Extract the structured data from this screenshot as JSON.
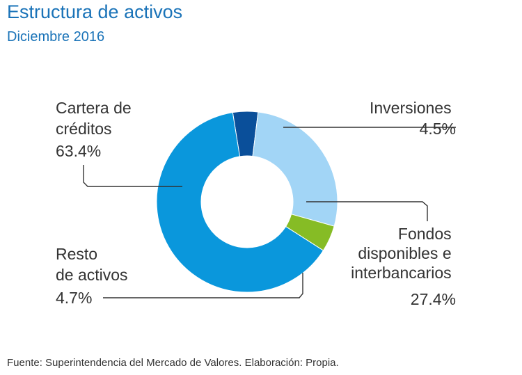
{
  "header": {
    "title": "Estructura de activos",
    "subtitle": "Diciembre 2016"
  },
  "chart_data": {
    "type": "pie",
    "title": "Estructura de activos",
    "subtitle": "Diciembre 2016",
    "donut": true,
    "unit": "%",
    "slices": [
      {
        "label_lines": [
          "Inversiones"
        ],
        "value": 4.5,
        "value_label": "4.5%",
        "color": "#0a4f9a"
      },
      {
        "label_lines": [
          "Fondos",
          "disponibles e",
          "interbancarios"
        ],
        "value": 27.4,
        "value_label": "27.4%",
        "color": "#a2d5f6"
      },
      {
        "label_lines": [
          "Resto",
          "de activos"
        ],
        "value": 4.7,
        "value_label": "4.7%",
        "color": "#86bc25"
      },
      {
        "label_lines": [
          "Cartera de",
          "créditos"
        ],
        "value": 63.4,
        "value_label": "63.4%",
        "color": "#0a97dc"
      }
    ]
  },
  "footer": {
    "source": "Fuente: Superintendencia del Mercado de Valores. Elaboración: Propia."
  }
}
